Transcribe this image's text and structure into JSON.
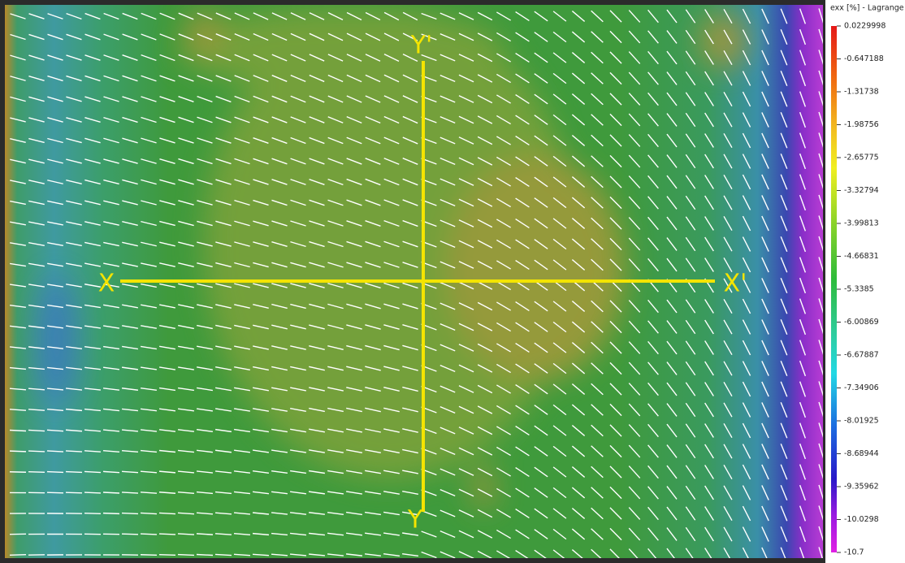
{
  "axes_overlay": {
    "x_start": "X",
    "x_end": "X'",
    "y_start": "Y",
    "y_end": "Y'"
  },
  "colorbar": {
    "title": "exx [%] - Lagrange",
    "ticks": [
      0.0229998,
      -0.647188,
      -1.31738,
      -1.98756,
      -2.65775,
      -3.32794,
      -3.99813,
      -4.66831,
      -5.3385,
      -6.00869,
      -6.67887,
      -7.34906,
      -8.01925,
      -8.68944,
      -9.35962,
      -10.0298,
      -10.7
    ]
  }
}
